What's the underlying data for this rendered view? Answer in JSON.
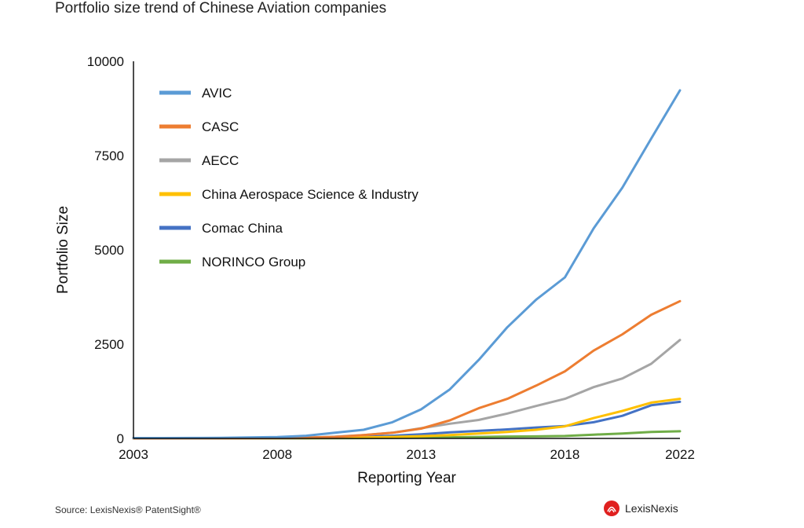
{
  "header": {
    "title": "Portfolio size trend of Chinese Aviation companies"
  },
  "footer": {
    "source": "Source: LexisNexis® PatentSight®",
    "logo_text": "LexisNexis"
  },
  "colors": {
    "logo_red": "#e0201f"
  },
  "chart_data": {
    "type": "line",
    "title": "Portfolio size trend of Chinese Aviation companies",
    "xlabel": "Reporting Year",
    "ylabel": "Portfolio Size",
    "x": [
      2003,
      2004,
      2005,
      2006,
      2007,
      2008,
      2009,
      2010,
      2011,
      2012,
      2013,
      2014,
      2015,
      2016,
      2017,
      2018,
      2019,
      2020,
      2021,
      2022
    ],
    "xticks": [
      2003,
      2008,
      2013,
      2018,
      2022
    ],
    "yticks": [
      0,
      2500,
      5000,
      7500,
      10000
    ],
    "xlim": [
      2003,
      2022
    ],
    "ylim": [
      0,
      10000
    ],
    "legend_position": "top-left",
    "grid": false,
    "series": [
      {
        "name": "AVIC",
        "color": "#5b9bd5",
        "values": [
          10,
          10,
          12,
          15,
          25,
          35,
          70,
          150,
          230,
          430,
          770,
          1300,
          2080,
          2950,
          3680,
          4270,
          5570,
          6650,
          7950,
          9230
        ]
      },
      {
        "name": "CASC",
        "color": "#ed7d31",
        "values": [
          3,
          3,
          4,
          5,
          8,
          10,
          20,
          40,
          90,
          150,
          260,
          480,
          800,
          1050,
          1400,
          1780,
          2330,
          2760,
          3280,
          3640
        ]
      },
      {
        "name": "AECC",
        "color": "#a5a5a5",
        "values": [
          2,
          3,
          3,
          4,
          6,
          10,
          20,
          45,
          90,
          150,
          270,
          390,
          490,
          660,
          860,
          1050,
          1360,
          1590,
          1980,
          2610
        ]
      },
      {
        "name": "China Aerospace Science & Industry",
        "color": "#ffc000",
        "values": [
          0,
          0,
          1,
          2,
          3,
          5,
          8,
          15,
          25,
          40,
          60,
          90,
          130,
          170,
          230,
          320,
          540,
          730,
          950,
          1050
        ]
      },
      {
        "name": "Comac China",
        "color": "#4472c4",
        "values": [
          0,
          0,
          0,
          1,
          2,
          4,
          8,
          20,
          45,
          70,
          110,
          160,
          200,
          240,
          290,
          330,
          430,
          600,
          880,
          970
        ]
      },
      {
        "name": "NORINCO Group",
        "color": "#70ad47",
        "values": [
          0,
          0,
          0,
          0,
          1,
          2,
          3,
          5,
          8,
          12,
          20,
          30,
          40,
          50,
          55,
          65,
          100,
          130,
          170,
          190
        ]
      }
    ]
  }
}
